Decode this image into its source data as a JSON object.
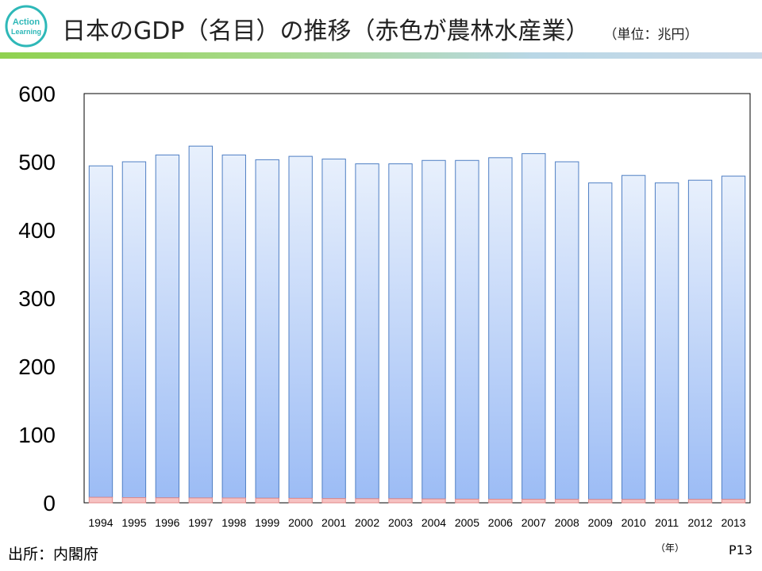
{
  "logo": {
    "line1": "Action",
    "line2": "Learning",
    "color": "#2eb8b8"
  },
  "header": {
    "title": "日本のGDP（名目）の推移（赤色が農林水産業）",
    "unit": "（単位：兆円）"
  },
  "colors": {
    "total_bar_top": "#e8f0fc",
    "total_bar_bottom": "#9cbcf5",
    "total_bar_border": "#4f7fc4",
    "agri_bar": "#f6c2c2",
    "agri_bar_border": "#e28a8a"
  },
  "chart_data": {
    "type": "bar",
    "title": "",
    "xlabel": "",
    "ylabel": "",
    "ylim": [
      0,
      600
    ],
    "yticks": [
      0,
      100,
      200,
      300,
      400,
      500,
      600
    ],
    "grid": false,
    "stacked": true,
    "categories": [
      "1994",
      "1995",
      "1996",
      "1997",
      "1998",
      "1999",
      "2000",
      "2001",
      "2002",
      "2003",
      "2004",
      "2005",
      "2006",
      "2007",
      "2008",
      "2009",
      "2010",
      "2011",
      "2012",
      "2013"
    ],
    "series": [
      {
        "key": "agri",
        "values": [
          8,
          7.5,
          7.3,
          7.1,
          7.0,
          6.7,
          6.5,
          6.2,
          6.0,
          6.0,
          5.6,
          5.3,
          5.2,
          5.1,
          5.0,
          4.9,
          4.9,
          4.8,
          5.0,
          5.0
        ]
      },
      {
        "key": "other",
        "values": [
          486,
          492.5,
          502.7,
          515.9,
          503.0,
          496.3,
          501.5,
          497.8,
          491.0,
          491.0,
          496.4,
          496.7,
          500.8,
          506.9,
          495.0,
          464.1,
          475.1,
          464.2,
          468.0,
          474.0
        ]
      }
    ]
  },
  "footer": {
    "source": "出所：内閣府",
    "x_unit": "（年）",
    "page": "P13"
  }
}
